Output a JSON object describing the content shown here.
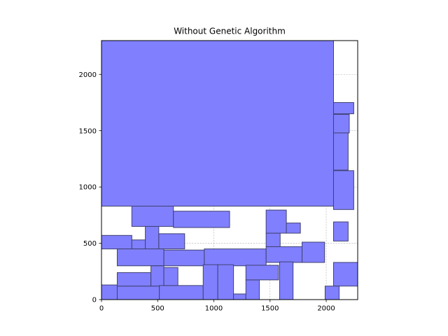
{
  "chart_data": {
    "type": "rectangle-packing",
    "title": "Without Genetic Algorithm",
    "xlabel": "",
    "ylabel": "",
    "xlim": [
      0,
      2280
    ],
    "ylim": [
      0,
      2300
    ],
    "xticks": [
      0,
      500,
      1000,
      1500,
      2000
    ],
    "yticks": [
      0,
      500,
      1000,
      1500,
      2000
    ],
    "grid": true,
    "fill_color": "#8080ff",
    "edge_color": "#404070",
    "rectangles": [
      {
        "x": 0,
        "y": 830,
        "w": 2065,
        "h": 1470
      },
      {
        "x": 2065,
        "y": 1650,
        "w": 180,
        "h": 100
      },
      {
        "x": 2065,
        "y": 1480,
        "w": 140,
        "h": 165
      },
      {
        "x": 2065,
        "y": 1150,
        "w": 130,
        "h": 330
      },
      {
        "x": 2065,
        "y": 800,
        "w": 180,
        "h": 345
      },
      {
        "x": 2065,
        "y": 520,
        "w": 130,
        "h": 170
      },
      {
        "x": 2065,
        "y": 120,
        "w": 215,
        "h": 210
      },
      {
        "x": 1990,
        "y": 0,
        "w": 125,
        "h": 120
      },
      {
        "x": 270,
        "y": 650,
        "w": 370,
        "h": 180
      },
      {
        "x": 640,
        "y": 640,
        "w": 500,
        "h": 145
      },
      {
        "x": 0,
        "y": 450,
        "w": 270,
        "h": 120
      },
      {
        "x": 270,
        "y": 450,
        "w": 120,
        "h": 80
      },
      {
        "x": 390,
        "y": 450,
        "w": 120,
        "h": 200
      },
      {
        "x": 510,
        "y": 450,
        "w": 230,
        "h": 135
      },
      {
        "x": 140,
        "y": 300,
        "w": 415,
        "h": 150
      },
      {
        "x": 555,
        "y": 300,
        "w": 360,
        "h": 140
      },
      {
        "x": 915,
        "y": 300,
        "w": 550,
        "h": 150
      },
      {
        "x": 1465,
        "y": 330,
        "w": 320,
        "h": 140
      },
      {
        "x": 1785,
        "y": 330,
        "w": 200,
        "h": 180
      },
      {
        "x": 1465,
        "y": 470,
        "w": 125,
        "h": 120
      },
      {
        "x": 1465,
        "y": 590,
        "w": 180,
        "h": 205
      },
      {
        "x": 1645,
        "y": 590,
        "w": 125,
        "h": 90
      },
      {
        "x": 0,
        "y": 0,
        "w": 140,
        "h": 130
      },
      {
        "x": 140,
        "y": 0,
        "w": 375,
        "h": 120
      },
      {
        "x": 140,
        "y": 120,
        "w": 300,
        "h": 120
      },
      {
        "x": 440,
        "y": 120,
        "w": 115,
        "h": 180
      },
      {
        "x": 515,
        "y": 0,
        "w": 390,
        "h": 125
      },
      {
        "x": 555,
        "y": 125,
        "w": 125,
        "h": 160
      },
      {
        "x": 905,
        "y": 0,
        "w": 130,
        "h": 310
      },
      {
        "x": 1035,
        "y": 0,
        "w": 140,
        "h": 310
      },
      {
        "x": 1175,
        "y": 0,
        "w": 110,
        "h": 50
      },
      {
        "x": 1285,
        "y": 0,
        "w": 120,
        "h": 175
      },
      {
        "x": 1285,
        "y": 175,
        "w": 290,
        "h": 130
      },
      {
        "x": 1585,
        "y": 0,
        "w": 120,
        "h": 335
      }
    ]
  }
}
